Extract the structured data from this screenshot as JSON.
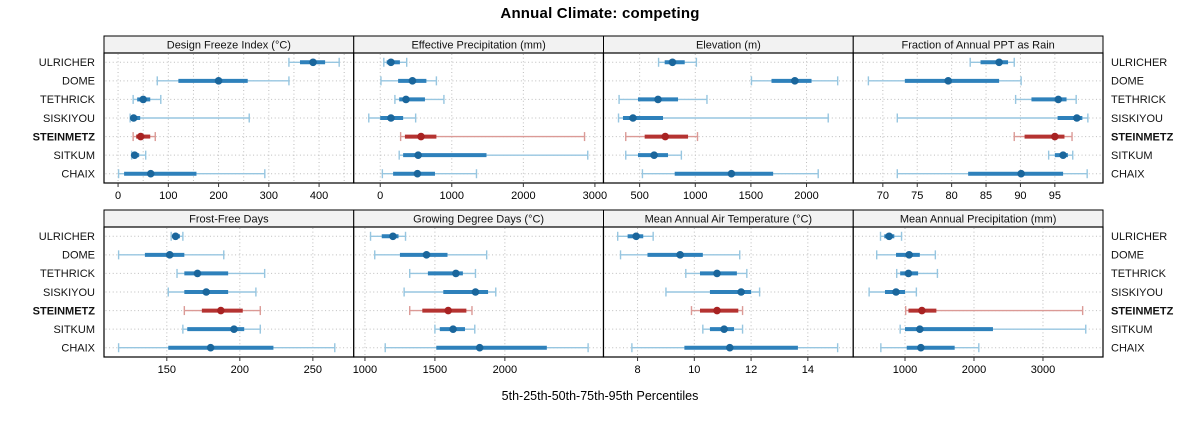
{
  "chart_data": {
    "type": "dotplot",
    "title": "Annual Climate: competing",
    "xlabel": "5th-25th-50th-75th-95th Percentiles",
    "percentiles": [
      5,
      25,
      50,
      75,
      95
    ],
    "sites": [
      "ULRICHER",
      "DOME",
      "TETHRICK",
      "SISKIYOU",
      "STEINMETZ",
      "SITKUM",
      "CHAIX"
    ],
    "highlight_site": "STEINMETZ",
    "legend_position": "none",
    "grid": "dotted",
    "colors": {
      "normal": {
        "dot": "#1a669c",
        "band": "#2e81bb",
        "light": "#97c6e0"
      },
      "highlight": {
        "dot": "#a82222",
        "band": "#b53331",
        "light": "#db9a96"
      },
      "strip_bg": "#f2f2f2",
      "frame": "#000000",
      "grid": "#bdbdbd",
      "tick": "#333333",
      "text": "#111111"
    },
    "panels": [
      {
        "id": "design-freeze-index",
        "title": "Design Freeze Index (°C)",
        "xlim": [
          -28,
          469
        ],
        "ticks": [
          0,
          100,
          200,
          300,
          400
        ],
        "gridlines": [
          0,
          50,
          100,
          150,
          200,
          250,
          300,
          350,
          400,
          450
        ],
        "values": {
          "ULRICHER": [
            340,
            362,
            388,
            412,
            440
          ],
          "DOME": [
            78,
            120,
            200,
            258,
            340
          ],
          "TETHRICK": [
            30,
            38,
            50,
            64,
            85
          ],
          "SISKIYOU": [
            24,
            26,
            31,
            44,
            261
          ],
          "STEINMETZ": [
            30,
            36,
            45,
            64,
            74
          ],
          "SITKUM": [
            27,
            29,
            33,
            42,
            55
          ],
          "CHAIX": [
            1,
            12,
            65,
            156,
            292
          ]
        }
      },
      {
        "id": "effective-precipitation",
        "title": "Effective Precipitation (mm)",
        "xlim": [
          -370,
          3120
        ],
        "ticks": [
          0,
          1000,
          2000,
          3000
        ],
        "gridlines": [
          0,
          1000,
          2000,
          3000
        ],
        "values": {
          "ULRICHER": [
            50,
            90,
            150,
            275,
            370
          ],
          "DOME": [
            10,
            250,
            450,
            645,
            785
          ],
          "TETHRICK": [
            205,
            265,
            360,
            625,
            890
          ],
          "SISKIYOU": [
            -160,
            0,
            150,
            320,
            495
          ],
          "STEINMETZ": [
            285,
            345,
            570,
            785,
            2855
          ],
          "SITKUM": [
            265,
            320,
            530,
            1485,
            2900
          ],
          "CHAIX": [
            30,
            180,
            520,
            765,
            1345
          ]
        }
      },
      {
        "id": "elevation",
        "title": "Elevation (m)",
        "xlim": [
          175,
          2420
        ],
        "ticks": [
          500,
          1000,
          1500,
          2000
        ],
        "gridlines": [
          500,
          1000,
          1500,
          2000
        ],
        "values": {
          "ULRICHER": [
            670,
            725,
            795,
            905,
            1010
          ],
          "DOME": [
            1505,
            1685,
            1895,
            2045,
            2280
          ],
          "TETHRICK": [
            315,
            485,
            665,
            845,
            1105
          ],
          "SISKIYOU": [
            310,
            350,
            440,
            710,
            2195
          ],
          "STEINMETZ": [
            375,
            545,
            730,
            935,
            1020
          ],
          "SITKUM": [
            375,
            485,
            630,
            755,
            875
          ],
          "CHAIX": [
            525,
            815,
            1325,
            1700,
            2105
          ]
        }
      },
      {
        "id": "fraction-annual-ppt-as-rain",
        "title": "Fraction of Annual PPT as Rain",
        "xlim": [
          65.7,
          102
        ],
        "ticks": [
          70,
          75,
          80,
          85,
          90,
          95
        ],
        "gridlines": [
          70,
          75,
          80,
          85,
          90,
          95
        ],
        "values": {
          "ULRICHER": [
            82.7,
            84.2,
            86.9,
            88.2,
            89.1
          ],
          "DOME": [
            67.9,
            73.2,
            79.5,
            86.9,
            90.1
          ],
          "TETHRICK": [
            89.3,
            91.6,
            95.5,
            96.7,
            98.1
          ],
          "SISKIYOU": [
            72.1,
            95.4,
            98.2,
            99.0,
            99.8
          ],
          "STEINMETZ": [
            89.1,
            90.6,
            95.0,
            96.4,
            97.5
          ],
          "SITKUM": [
            94.1,
            95.0,
            96.2,
            96.9,
            97.6
          ],
          "CHAIX": [
            72.1,
            82.4,
            90.1,
            96.2,
            99.7
          ]
        }
      },
      {
        "id": "frost-free-days",
        "title": "Frost-Free Days",
        "xlim": [
          107,
          278
        ],
        "ticks": [
          150,
          200,
          250
        ],
        "gridlines": [
          150,
          200,
          250
        ],
        "values": {
          "ULRICHER": [
            153,
            155,
            156,
            159,
            161
          ],
          "DOME": [
            117,
            135,
            152,
            162,
            189
          ],
          "TETHRICK": [
            157,
            162,
            171,
            192,
            217
          ],
          "SISKIYOU": [
            151,
            162,
            177,
            192,
            211
          ],
          "STEINMETZ": [
            162,
            174,
            187,
            202,
            214
          ],
          "SITKUM": [
            161,
            164,
            196,
            203,
            214
          ],
          "CHAIX": [
            117,
            151,
            180,
            223,
            265
          ]
        }
      },
      {
        "id": "growing-degree-days",
        "title": "Growing Degree Days (°C)",
        "xlim": [
          920,
          2705
        ],
        "ticks": [
          1000,
          1500,
          2000
        ],
        "gridlines": [
          1000,
          1500,
          2000
        ],
        "values": {
          "ULRICHER": [
            1040,
            1120,
            1200,
            1240,
            1290
          ],
          "DOME": [
            1070,
            1250,
            1440,
            1590,
            1870
          ],
          "TETHRICK": [
            1320,
            1450,
            1650,
            1700,
            1790
          ],
          "SISKIYOU": [
            1280,
            1560,
            1790,
            1880,
            1935
          ],
          "STEINMETZ": [
            1320,
            1410,
            1595,
            1725,
            1765
          ],
          "SITKUM": [
            1500,
            1535,
            1630,
            1715,
            1785
          ],
          "CHAIX": [
            1145,
            1510,
            1820,
            2300,
            2595
          ]
        }
      },
      {
        "id": "mean-annual-air-temperature",
        "title": "Mean Annual Air Temperature (°C)",
        "xlim": [
          6.8,
          15.6
        ],
        "ticks": [
          8,
          10,
          12,
          14
        ],
        "gridlines": [
          8,
          10,
          12,
          14
        ],
        "values": {
          "ULRICHER": [
            7.3,
            7.65,
            7.95,
            8.2,
            8.55
          ],
          "DOME": [
            7.4,
            8.35,
            9.5,
            10.3,
            11.6
          ],
          "TETHRICK": [
            9.7,
            10.2,
            10.8,
            11.5,
            11.85
          ],
          "SISKIYOU": [
            9.0,
            10.55,
            11.65,
            12.0,
            12.3
          ],
          "STEINMETZ": [
            9.9,
            10.2,
            10.8,
            11.55,
            11.7
          ],
          "SITKUM": [
            10.3,
            10.55,
            11.05,
            11.4,
            11.7
          ],
          "CHAIX": [
            7.8,
            9.65,
            11.25,
            13.65,
            15.05
          ]
        }
      },
      {
        "id": "mean-annual-precipitation",
        "title": "Mean Annual Precipitation (mm)",
        "xlim": [
          250,
          3870
        ],
        "ticks": [
          1000,
          2000,
          3000
        ],
        "gridlines": [
          1000,
          2000,
          3000
        ],
        "values": {
          "ULRICHER": [
            645,
            700,
            770,
            845,
            950
          ],
          "DOME": [
            590,
            870,
            1060,
            1215,
            1440
          ],
          "TETHRICK": [
            880,
            930,
            1050,
            1190,
            1470
          ],
          "SISKIYOU": [
            480,
            710,
            870,
            1000,
            1165
          ],
          "STEINMETZ": [
            1010,
            1050,
            1245,
            1455,
            3575
          ],
          "SITKUM": [
            930,
            1000,
            1215,
            2275,
            3620
          ],
          "CHAIX": [
            650,
            1025,
            1230,
            1720,
            2070
          ]
        }
      }
    ]
  }
}
